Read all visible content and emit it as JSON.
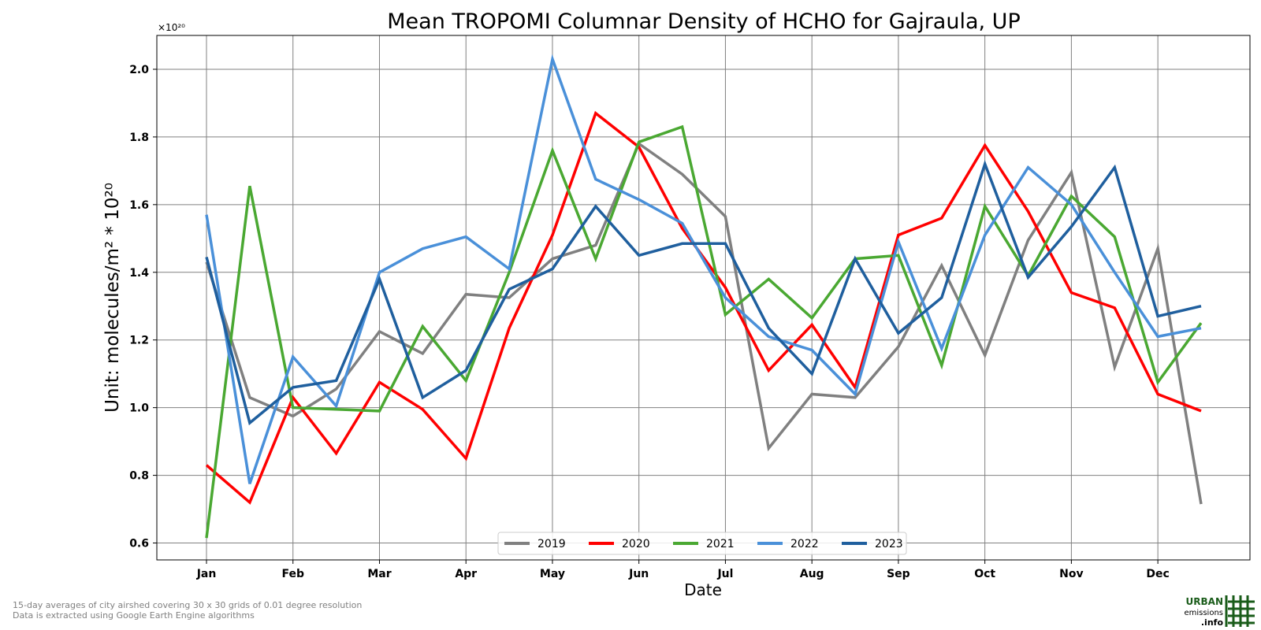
{
  "chart_data": {
    "type": "line",
    "title": "Mean TROPOMI Columnar Density of HCHO for Gajraula, UP",
    "xlabel": "Date",
    "ylabel": "Unit: molecules/m² * 10²⁰",
    "y_multiplier": "×10²⁰",
    "x_tick_labels": [
      "Jan",
      "Feb",
      "Mar",
      "Apr",
      "May",
      "Jun",
      "Jul",
      "Aug",
      "Sep",
      "Oct",
      "Nov",
      "Dec"
    ],
    "y_ticks": [
      0.6,
      0.8,
      1.0,
      1.2,
      1.4,
      1.6,
      1.8,
      2.0
    ],
    "ylim": [
      0.55,
      2.1
    ],
    "grid": true,
    "legend_position": "bottom-center",
    "x": [
      "Jan 01",
      "Jan 16",
      "Feb 01",
      "Feb 16",
      "Mar 01",
      "Mar 16",
      "Apr 01",
      "Apr 16",
      "May 01",
      "May 16",
      "Jun 01",
      "Jun 16",
      "Jul 01",
      "Jul 16",
      "Aug 01",
      "Aug 16",
      "Sep 01",
      "Sep 16",
      "Oct 01",
      "Oct 16",
      "Nov 01",
      "Nov 16",
      "Dec 01",
      "Dec 16"
    ],
    "series": [
      {
        "name": "2019",
        "color": "#808080",
        "values": [
          1.43,
          1.03,
          0.975,
          1.055,
          1.225,
          1.16,
          1.335,
          1.325,
          1.44,
          1.48,
          1.78,
          1.69,
          1.565,
          0.88,
          1.04,
          1.03,
          1.18,
          1.42,
          1.155,
          1.495,
          1.695,
          1.12,
          1.47,
          0.715
        ]
      },
      {
        "name": "2020",
        "color": "#ff0000",
        "values": [
          0.83,
          0.72,
          1.03,
          0.865,
          1.075,
          0.995,
          0.85,
          1.235,
          1.51,
          1.87,
          1.77,
          1.53,
          1.355,
          1.11,
          1.245,
          1.06,
          1.51,
          1.56,
          1.775,
          1.58,
          1.34,
          1.295,
          1.04,
          0.99
        ]
      },
      {
        "name": "2021",
        "color": "#4aa832",
        "values": [
          0.615,
          1.655,
          1.0,
          0.995,
          0.99,
          1.24,
          1.08,
          1.4,
          1.76,
          1.44,
          1.785,
          1.83,
          1.275,
          1.38,
          1.265,
          1.44,
          1.45,
          1.125,
          1.595,
          1.39,
          1.625,
          1.505,
          1.075,
          1.25
        ]
      },
      {
        "name": "2022",
        "color": "#4a90d9",
        "values": [
          1.57,
          0.775,
          1.15,
          1.005,
          1.4,
          1.47,
          1.505,
          1.41,
          2.03,
          1.675,
          1.615,
          1.545,
          1.325,
          1.21,
          1.17,
          1.04,
          1.49,
          1.175,
          1.51,
          1.71,
          1.6,
          1.4,
          1.21,
          1.235
        ]
      },
      {
        "name": "2023",
        "color": "#1f5f9e",
        "values": [
          1.445,
          0.955,
          1.06,
          1.08,
          1.38,
          1.03,
          1.11,
          1.35,
          1.41,
          1.595,
          1.45,
          1.485,
          1.485,
          1.235,
          1.1,
          1.44,
          1.22,
          1.325,
          1.72,
          1.385,
          1.535,
          1.71,
          1.27,
          1.3
        ]
      }
    ]
  },
  "footnotes": {
    "line1": "15-day averages of city airshed covering 30 x 30 grids of 0.01 degree resolution",
    "line2": "Data is extracted using Google Earth Engine algorithms"
  },
  "logo": {
    "line1": "URBAN",
    "line2": "emissions",
    "line3": ".info",
    "color": "#1a5c1a"
  }
}
